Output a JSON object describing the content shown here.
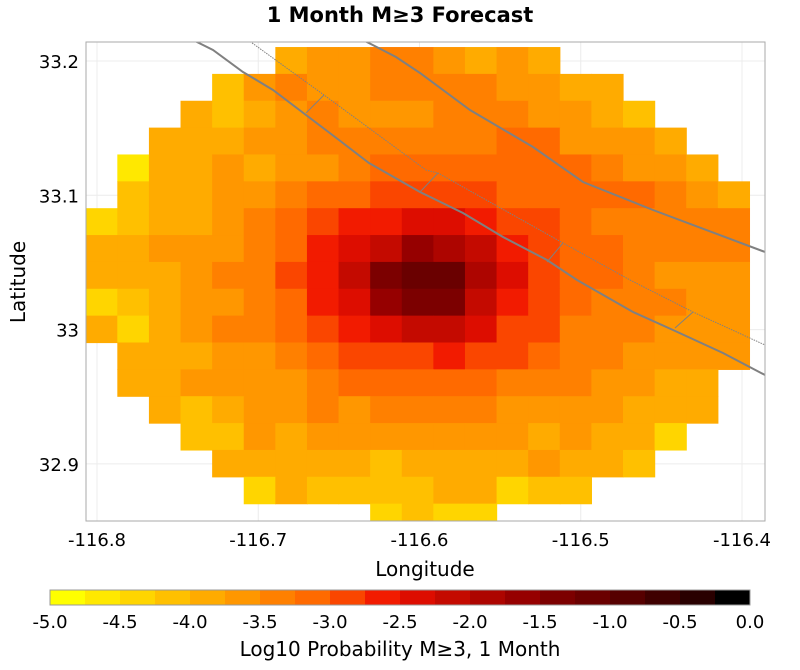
{
  "chart_data": {
    "type": "heatmap",
    "title": "1 Month M≥3 Forecast",
    "xlabel": "Longitude",
    "ylabel": "Latitude",
    "xlim": [
      -116.807,
      -116.386
    ],
    "ylim": [
      32.858,
      33.214
    ],
    "xticks": [
      -116.8,
      -116.7,
      -116.6,
      -116.5,
      -116.4
    ],
    "xtick_labels": [
      "-116.8",
      "-116.7",
      "-116.6",
      "-116.5",
      "-116.4"
    ],
    "yticks": [
      33.2,
      33.1,
      33.0,
      32.9
    ],
    "ytick_labels": [
      "33.2",
      "33.1",
      "33",
      "32.9"
    ],
    "grid": true,
    "grid_lon_start": -116.807,
    "grid_lon_step": 0.0196,
    "grid_lat_start": 33.2104,
    "grid_lat_step": 0.02,
    "z_note_rows": "rows from north to south, columns from west to east; null = no data",
    "z": [
      [
        null,
        null,
        null,
        null,
        null,
        null,
        -3.875,
        -3.625,
        -3.625,
        -3.375,
        -3.375,
        -3.625,
        -3.875,
        -3.625,
        -3.875,
        null,
        null,
        null,
        null,
        null,
        null
      ],
      [
        null,
        null,
        null,
        null,
        -4.125,
        -3.625,
        -3.375,
        -3.625,
        -3.625,
        -3.375,
        -3.375,
        -3.375,
        -3.375,
        -3.625,
        -3.625,
        -3.875,
        -3.875,
        null,
        null,
        null,
        null
      ],
      [
        null,
        null,
        null,
        -3.875,
        -4.125,
        -3.875,
        -3.625,
        -3.375,
        -3.625,
        -3.625,
        -3.625,
        -3.375,
        -3.375,
        -3.375,
        -3.625,
        -3.625,
        -3.875,
        -4.125,
        null,
        null,
        null
      ],
      [
        null,
        null,
        -3.875,
        -3.875,
        -3.875,
        -3.625,
        -3.625,
        -3.375,
        -3.375,
        -3.375,
        -3.375,
        -3.375,
        -3.375,
        -3.125,
        -3.125,
        -3.625,
        -3.625,
        -3.625,
        -3.875,
        null,
        null
      ],
      [
        null,
        -4.625,
        -3.875,
        -3.875,
        -3.625,
        -3.875,
        -3.625,
        -3.625,
        -3.375,
        -3.125,
        -3.125,
        -3.125,
        -3.125,
        -3.125,
        -3.125,
        -3.125,
        -3.375,
        -3.625,
        -3.625,
        -3.875,
        null
      ],
      [
        null,
        -4.125,
        -3.875,
        -3.875,
        -3.625,
        -3.625,
        -3.375,
        -3.125,
        -3.125,
        -2.875,
        -2.875,
        -2.875,
        -2.875,
        -3.125,
        -3.125,
        -3.125,
        -3.125,
        -3.125,
        -3.375,
        -3.625,
        -3.875
      ],
      [
        -4.375,
        -4.125,
        -3.875,
        -3.875,
        -3.625,
        -3.375,
        -3.125,
        -2.875,
        -2.625,
        -2.625,
        -2.375,
        -2.375,
        -2.625,
        -2.875,
        -2.875,
        -3.125,
        -3.375,
        -3.375,
        -3.375,
        -3.375,
        -3.375
      ],
      [
        -3.875,
        -3.875,
        -3.625,
        -3.625,
        -3.625,
        -3.375,
        -3.125,
        -2.625,
        -2.375,
        -2.125,
        -1.625,
        -1.875,
        -2.125,
        -2.625,
        -2.875,
        -3.125,
        -3.125,
        -3.375,
        -3.375,
        -3.375,
        -3.375
      ],
      [
        -3.875,
        -3.875,
        -3.875,
        -3.625,
        -3.375,
        -3.375,
        -2.875,
        -2.625,
        -2.125,
        -1.375,
        -1.125,
        -1.125,
        -1.875,
        -2.375,
        -2.875,
        -3.125,
        -3.125,
        -3.375,
        -3.625,
        -3.625,
        -3.625
      ],
      [
        -4.375,
        -4.125,
        -3.875,
        -3.625,
        -3.625,
        -3.375,
        -3.125,
        -2.625,
        -2.375,
        -1.625,
        -1.375,
        -1.375,
        -2.125,
        -2.625,
        -2.875,
        -3.125,
        -3.375,
        -3.375,
        -3.375,
        -3.625,
        -3.625
      ],
      [
        -3.875,
        -4.375,
        -3.875,
        -3.625,
        -3.375,
        -3.375,
        -3.125,
        -2.875,
        -2.625,
        -2.375,
        -2.125,
        -2.125,
        -2.375,
        -2.875,
        -2.875,
        -3.375,
        -3.375,
        -3.375,
        -3.625,
        -3.625,
        -3.625
      ],
      [
        null,
        -3.875,
        -3.875,
        -3.875,
        -3.625,
        -3.625,
        -3.375,
        -3.125,
        -2.875,
        -2.875,
        -2.875,
        -2.625,
        -2.875,
        -2.875,
        -3.125,
        -3.375,
        -3.375,
        -3.625,
        -3.625,
        -3.625,
        -3.625
      ],
      [
        null,
        -3.875,
        -3.875,
        -3.625,
        -3.625,
        -3.625,
        -3.625,
        -3.375,
        -3.125,
        -3.125,
        -3.125,
        -3.125,
        -3.125,
        -3.375,
        -3.375,
        -3.375,
        -3.625,
        -3.625,
        -3.875,
        -3.875,
        null
      ],
      [
        null,
        null,
        -3.875,
        -4.125,
        -3.875,
        -3.625,
        -3.625,
        -3.375,
        -3.625,
        -3.375,
        -3.375,
        -3.375,
        -3.375,
        -3.625,
        -3.625,
        -3.625,
        -3.625,
        -3.875,
        -3.875,
        -3.875,
        null
      ],
      [
        null,
        null,
        null,
        -4.125,
        -4.125,
        -3.625,
        -3.875,
        -3.625,
        -3.625,
        -3.625,
        -3.625,
        -3.625,
        -3.625,
        -3.625,
        -3.875,
        -3.625,
        -3.875,
        -3.875,
        -4.375,
        null,
        null
      ],
      [
        null,
        null,
        null,
        null,
        -3.875,
        -3.875,
        -3.875,
        -3.875,
        -3.875,
        -4.125,
        -3.875,
        -3.875,
        -3.875,
        -3.875,
        -3.625,
        -3.875,
        -3.875,
        -4.125,
        null,
        null,
        null
      ],
      [
        null,
        null,
        null,
        null,
        null,
        -4.375,
        -3.875,
        -4.125,
        -4.125,
        -4.125,
        -4.125,
        -3.875,
        -3.875,
        -4.375,
        -4.125,
        -4.125,
        null,
        null,
        null,
        null,
        null
      ],
      [
        null,
        null,
        null,
        null,
        null,
        null,
        null,
        null,
        null,
        -4.375,
        -4.125,
        -4.375,
        -4.375,
        null,
        null,
        null,
        null,
        null,
        null,
        null,
        null
      ]
    ],
    "colorbar": {
      "label": "Log10 Probability M≥3, 1 Month",
      "range": [
        -5.0,
        0.0
      ],
      "step": 0.25,
      "tick_values": [
        -5.0,
        -4.5,
        -4.0,
        -3.5,
        -3.0,
        -2.5,
        -2.0,
        -1.5,
        -1.0,
        -0.5,
        0.0
      ],
      "tick_labels": [
        "-5.0",
        "-4.5",
        "-4.0",
        "-3.5",
        "-3.0",
        "-2.5",
        "-2.0",
        "-1.5",
        "-1.0",
        "-0.5",
        "0.0"
      ],
      "colors": [
        "#ffff00",
        "#ffe800",
        "#ffd500",
        "#ffc000",
        "#ffab00",
        "#ff9700",
        "#ff8000",
        "#ff6a00",
        "#fa4600",
        "#f21b00",
        "#dd0d00",
        "#c40a00",
        "#ad0500",
        "#960000",
        "#7c0000",
        "#6a0000",
        "#560000",
        "#3f0000",
        "#290000",
        "#000000"
      ]
    },
    "fault_color": "#808080"
  }
}
